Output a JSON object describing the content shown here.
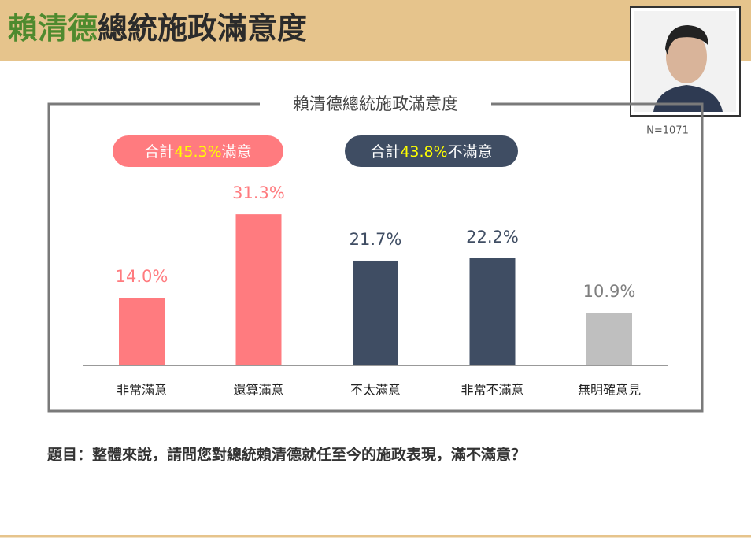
{
  "header": {
    "title_name": "賴清德",
    "title_rest": "總統施政滿意度"
  },
  "sample_size": "N=1071",
  "chart_data": {
    "type": "bar",
    "title": "賴清德總統施政滿意度",
    "categories": [
      "非常滿意",
      "還算滿意",
      "不太滿意",
      "非常不滿意",
      "無明確意見"
    ],
    "values": [
      14.0,
      31.3,
      21.7,
      22.2,
      10.9
    ],
    "value_labels": [
      "14.0%",
      "31.3%",
      "21.7%",
      "22.2%",
      "10.9%"
    ],
    "colors": [
      "#ff7b7f",
      "#ff7b7f",
      "#3f4d63",
      "#3f4d63",
      "#bfbfbf"
    ],
    "summaries": [
      {
        "prefix": "合計",
        "value": "45.3%",
        "suffix": "滿意",
        "color": "#ff7b7f"
      },
      {
        "prefix": "合計",
        "value": "43.8%",
        "suffix": "不滿意",
        "color": "#3f4d63"
      }
    ]
  },
  "question": "題目：整體來說，請問您對總統賴清德就任至今的施政表現，滿不滿意？"
}
